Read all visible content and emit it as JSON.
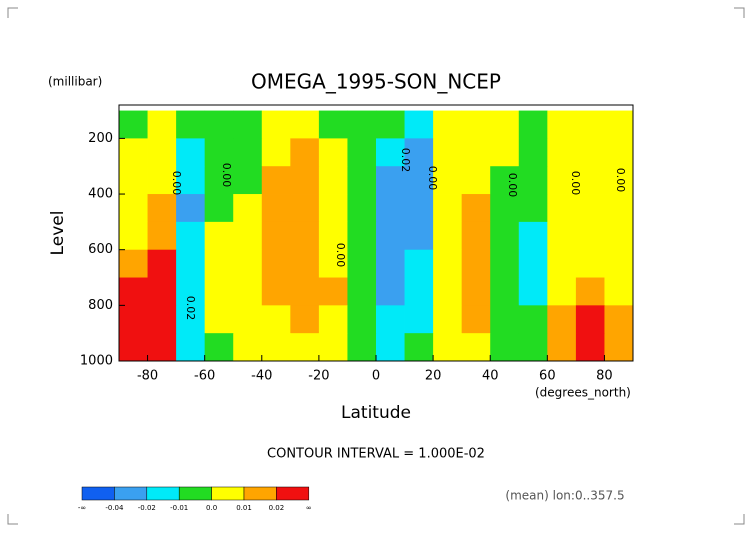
{
  "chart_data": {
    "type": "contour",
    "title": "OMEGA_1995-SON_NCEP",
    "y_units": "(millibar)",
    "y_label": "Level",
    "x_label": "Latitude",
    "x_units": "(degrees_north)",
    "contour_interval": "CONTOUR INTERVAL = 1.000E-02",
    "footnote": "(mean) lon:0..357.5",
    "x": [
      -85,
      -75,
      -65,
      -55,
      -45,
      -35,
      -25,
      -15,
      -5,
      5,
      15,
      25,
      35,
      45,
      55,
      65,
      75,
      85
    ],
    "y": [
      150,
      250,
      350,
      450,
      550,
      650,
      750,
      850,
      950
    ],
    "z": [
      [
        -0.005,
        0.005,
        -0.005,
        -0.005,
        -0.005,
        0.005,
        0.005,
        -0.005,
        -0.005,
        -0.005,
        -0.015,
        0.005,
        0.005,
        0.005,
        -0.005,
        0.005,
        0.005,
        0.005
      ],
      [
        0.005,
        0.005,
        -0.015,
        -0.005,
        -0.005,
        0.005,
        0.015,
        0.005,
        -0.005,
        -0.015,
        -0.03,
        0.005,
        0.005,
        0.005,
        -0.005,
        0.005,
        0.005,
        0.005
      ],
      [
        0.005,
        0.005,
        -0.015,
        -0.005,
        -0.005,
        0.015,
        0.015,
        0.005,
        -0.005,
        -0.03,
        -0.03,
        0.005,
        0.005,
        -0.005,
        -0.005,
        0.005,
        0.005,
        0.005
      ],
      [
        0.005,
        0.015,
        -0.03,
        -0.005,
        0.005,
        0.015,
        0.015,
        0.005,
        -0.005,
        -0.03,
        -0.03,
        0.005,
        0.015,
        -0.005,
        -0.005,
        0.005,
        0.005,
        0.005
      ],
      [
        0.005,
        0.015,
        -0.015,
        0.005,
        0.005,
        0.015,
        0.015,
        0.005,
        -0.005,
        -0.03,
        -0.03,
        0.005,
        0.015,
        -0.005,
        -0.015,
        0.005,
        0.005,
        0.005
      ],
      [
        0.015,
        0.03,
        -0.015,
        0.005,
        0.005,
        0.015,
        0.015,
        0.005,
        -0.005,
        -0.03,
        -0.015,
        0.005,
        0.015,
        -0.005,
        -0.015,
        0.005,
        0.005,
        0.005
      ],
      [
        0.03,
        0.03,
        -0.015,
        0.005,
        0.005,
        0.015,
        0.015,
        0.015,
        -0.005,
        -0.03,
        -0.015,
        0.005,
        0.015,
        -0.005,
        -0.015,
        0.005,
        0.015,
        0.005
      ],
      [
        0.03,
        0.03,
        -0.015,
        0.005,
        0.005,
        0.005,
        0.015,
        0.005,
        -0.005,
        -0.015,
        -0.015,
        0.005,
        0.015,
        -0.005,
        -0.005,
        0.015,
        0.03,
        0.015
      ],
      [
        0.03,
        0.03,
        -0.015,
        -0.005,
        0.005,
        0.005,
        0.005,
        0.005,
        -0.005,
        -0.015,
        -0.005,
        0.005,
        0.005,
        -0.005,
        -0.005,
        0.015,
        0.03,
        0.015
      ]
    ],
    "xlim": [
      -90,
      90
    ],
    "xticks": [
      -80,
      -60,
      -40,
      -20,
      0,
      20,
      40,
      60,
      80
    ],
    "ylim": [
      1000,
      80
    ],
    "yticks": [
      200,
      400,
      600,
      800,
      1000
    ],
    "colors": [
      "#1060f0",
      "#3aa0f0",
      "#00eaf8",
      "#22dc22",
      "#ffff00",
      "#ffa500",
      "#f01010"
    ],
    "colorbar_ticks": [
      "-∞",
      -0.04,
      -0.02,
      -0.01,
      {
        "value": 0,
        "label": "0.0"
      },
      0.01,
      0.02,
      "∞"
    ],
    "contour_labels": [
      "0.00",
      "0.00",
      "0.02",
      "0.02",
      "0.00",
      "0.00",
      "0.00",
      "0.00",
      "0.00"
    ]
  }
}
